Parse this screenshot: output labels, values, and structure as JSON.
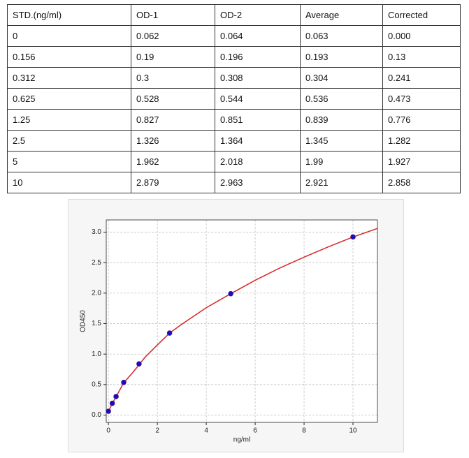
{
  "table": {
    "header": [
      "STD.(ng/ml)",
      "OD-1",
      "OD-2",
      "Average",
      "Corrected"
    ],
    "rows": [
      [
        "0",
        "0.062",
        "0.064",
        "0.063",
        "0.000"
      ],
      [
        "0.156",
        "0.19",
        "0.196",
        "0.193",
        "0.13"
      ],
      [
        "0.312",
        "0.3",
        "0.308",
        "0.304",
        "0.241"
      ],
      [
        "0.625",
        "0.528",
        "0.544",
        "0.536",
        "0.473"
      ],
      [
        "1.25",
        "0.827",
        "0.851",
        "0.839",
        "0.776"
      ],
      [
        "2.5",
        "1.326",
        "1.364",
        "1.345",
        "1.282"
      ],
      [
        "5",
        "1.962",
        "2.018",
        "1.99",
        "1.927"
      ],
      [
        "10",
        "2.879",
        "2.963",
        "2.921",
        "2.858"
      ]
    ]
  },
  "chart_data": {
    "type": "scatter",
    "x_label": "ng/ml",
    "y_label": "OD450",
    "xlim": [
      -0.09,
      11
    ],
    "ylim": [
      -0.12,
      3.2
    ],
    "xticks": [
      0,
      2,
      4,
      6,
      8,
      10
    ],
    "yticks": [
      {
        "value": 0,
        "label": "0.0"
      },
      0.5,
      {
        "value": 1,
        "label": "1.0"
      },
      1.5,
      {
        "value": 2,
        "label": "2.0"
      },
      2.5,
      {
        "value": 3,
        "label": "3.0"
      }
    ],
    "grid": true,
    "series": [
      {
        "type": "line",
        "color": "#d62728",
        "x": [
          0,
          0.156,
          0.312,
          0.625,
          1,
          1.5,
          2,
          2.5,
          3,
          4,
          5,
          6,
          7,
          8,
          9,
          10,
          11
        ],
        "values": [
          0.06,
          0.19,
          0.3,
          0.53,
          0.7,
          0.95,
          1.15,
          1.345,
          1.49,
          1.76,
          1.99,
          2.21,
          2.41,
          2.59,
          2.76,
          2.92,
          3.06
        ]
      },
      {
        "type": "scatter",
        "color": "#1010c8",
        "x": [
          0,
          0.156,
          0.312,
          0.625,
          1.25,
          2.5,
          5,
          10
        ],
        "values": [
          0.063,
          0.193,
          0.304,
          0.536,
          0.839,
          1.345,
          1.99,
          2.921
        ]
      }
    ]
  }
}
